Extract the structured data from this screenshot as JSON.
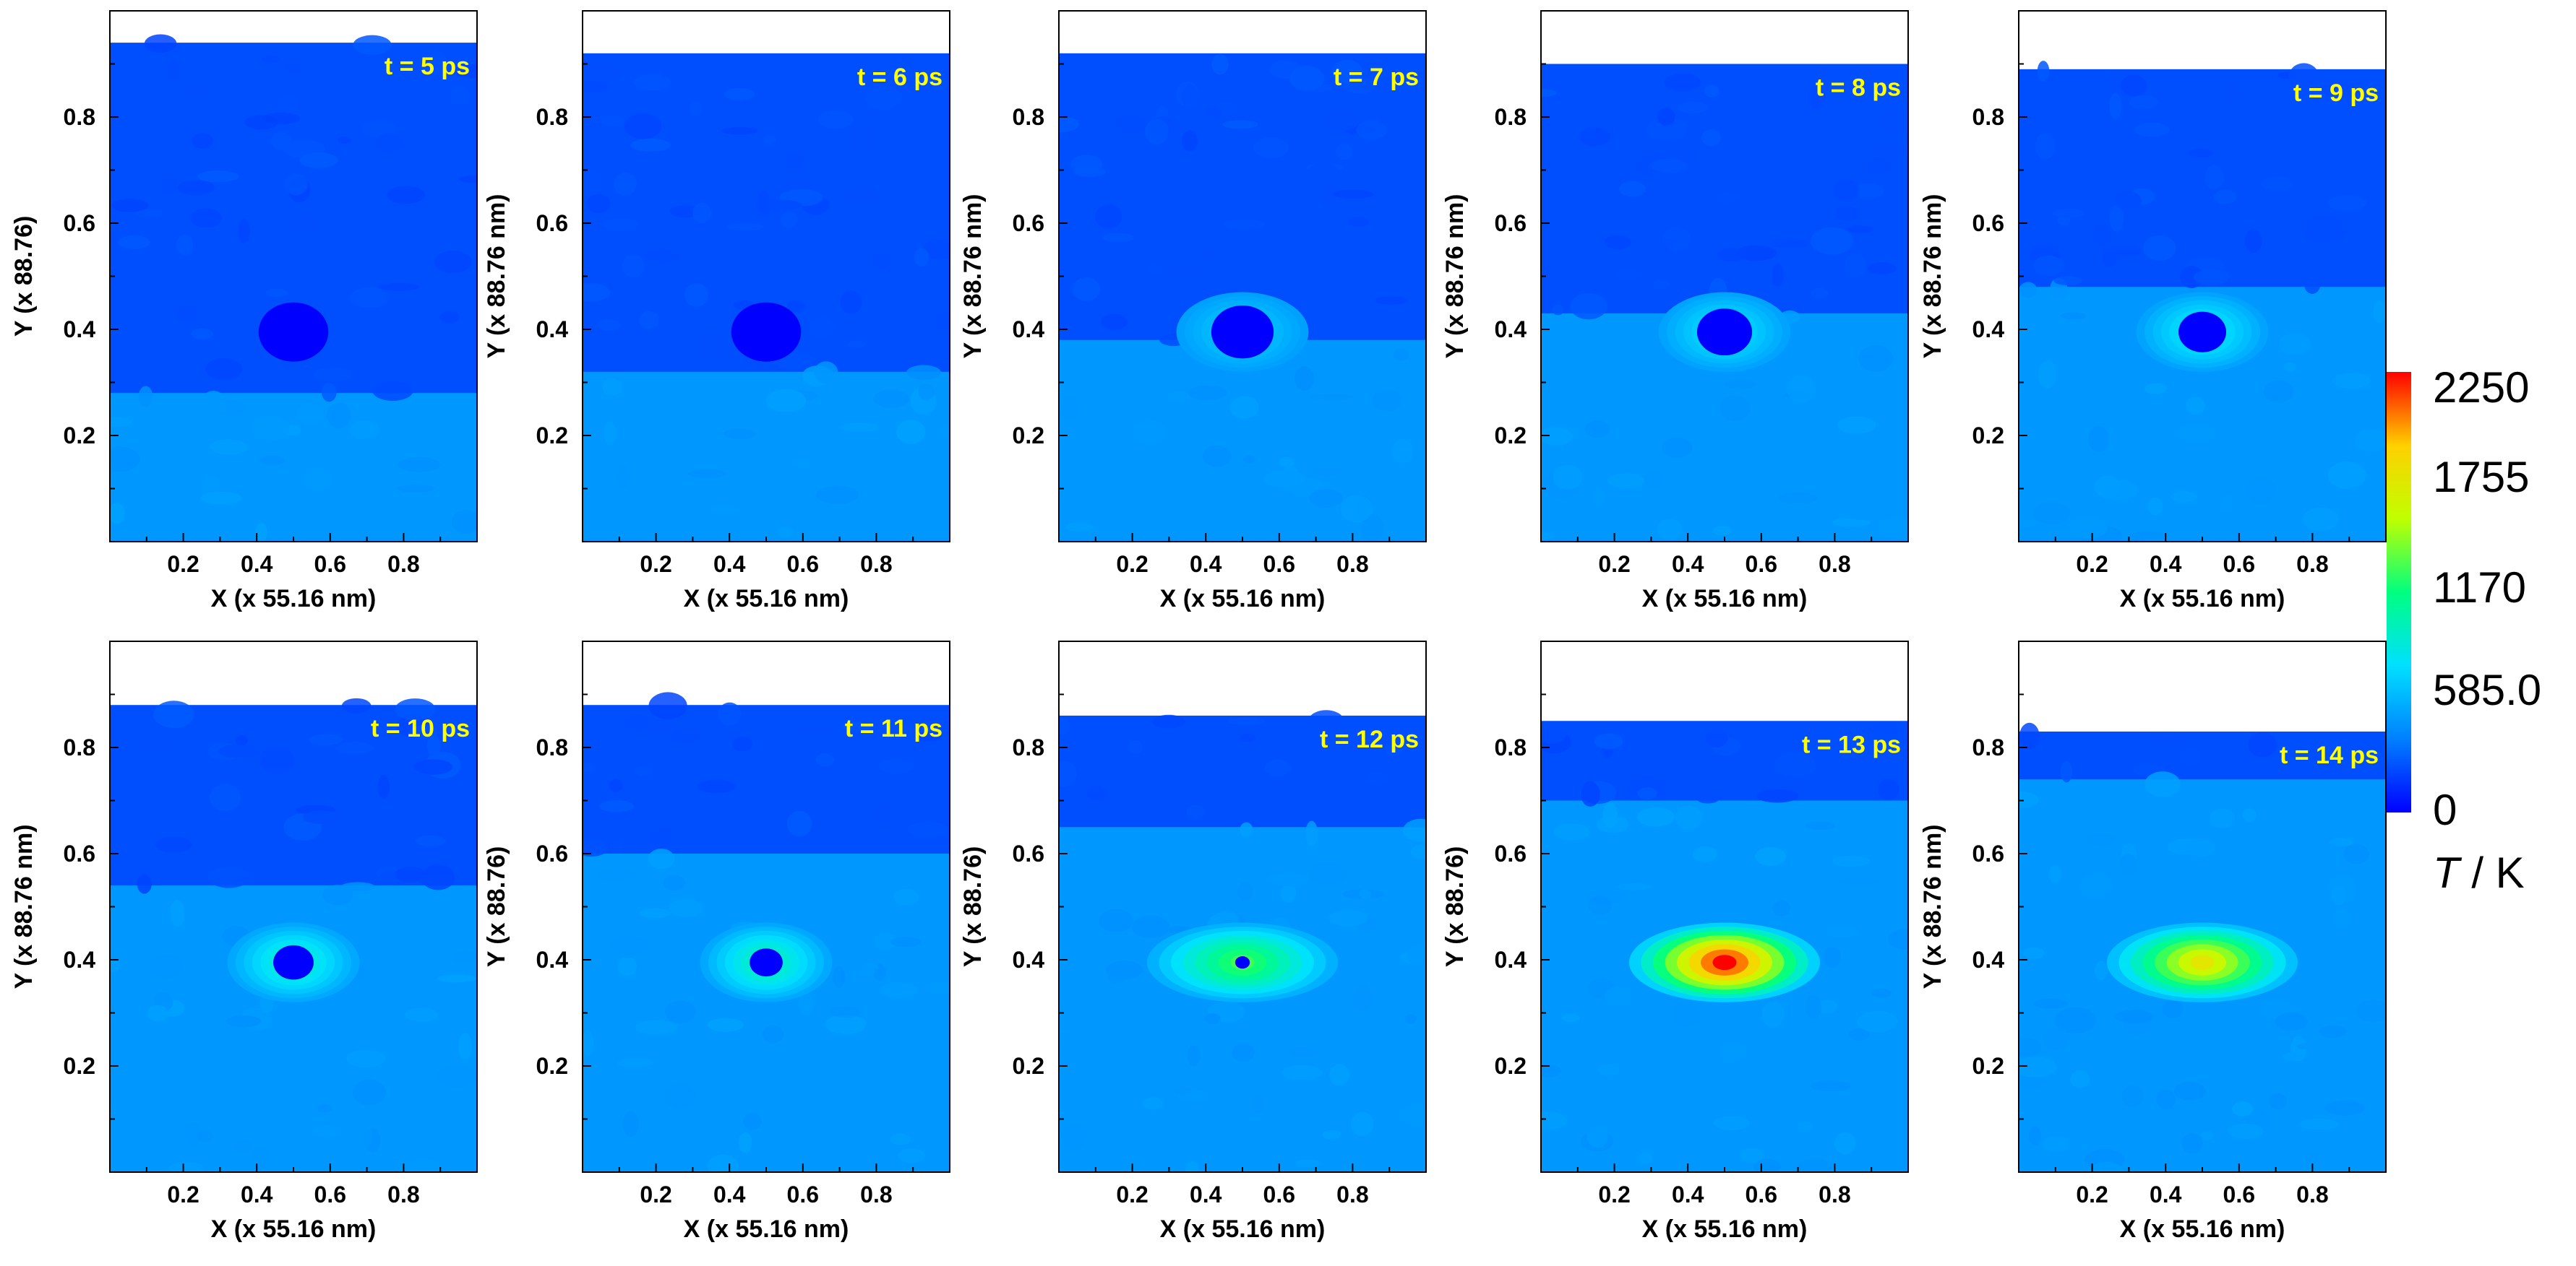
{
  "chart_data": {
    "type": "heatmap",
    "description_free": true,
    "grid": false,
    "panel_layout": "2 rows x 5 columns",
    "xlabel": "X (x 55.16 nm)",
    "xticks": [
      "0.2",
      "0.4",
      "0.6",
      "0.8"
    ],
    "yticks": [
      "0.2",
      "0.4",
      "0.6",
      "0.8"
    ],
    "xlim": [
      0,
      1
    ],
    "ylim": [
      0,
      1
    ],
    "colorbar": {
      "title_italic": "T",
      "title_rest": " / K",
      "ticks": [
        "2250",
        "1755",
        "1170",
        "585.0",
        "0"
      ],
      "tick_values": [
        2250,
        1755,
        1170,
        585,
        0
      ],
      "range": [
        0,
        2250
      ],
      "colors": [
        "#0000ff",
        "#0080ff",
        "#00e0ff",
        "#00ff80",
        "#c0ff00",
        "#ffd000",
        "#ff0000"
      ]
    },
    "panels": [
      {
        "label": "t = 5 ps",
        "ylabel": "Y (x 88.76)",
        "surface_y": 0.94,
        "front_y": 0.28,
        "hole_r": 0.095,
        "hot_peak": 0
      },
      {
        "label": "t = 6 ps",
        "ylabel": "Y (x 88.76 nm)",
        "surface_y": 0.92,
        "front_y": 0.32,
        "hole_r": 0.095,
        "hot_peak": 0
      },
      {
        "label": "t = 7 ps",
        "ylabel": "Y (x 88.76 nm)",
        "surface_y": 0.92,
        "front_y": 0.38,
        "hole_r": 0.085,
        "hot_peak": 700
      },
      {
        "label": "t = 8 ps",
        "ylabel": "Y (x 88.76 nm)",
        "surface_y": 0.9,
        "front_y": 0.43,
        "hole_r": 0.075,
        "hot_peak": 800
      },
      {
        "label": "t = 9 ps",
        "ylabel": "Y (x 88.76 nm)",
        "surface_y": 0.89,
        "front_y": 0.48,
        "hole_r": 0.065,
        "hot_peak": 850
      },
      {
        "label": "t = 10 ps",
        "ylabel": "Y (x 88.76 nm)",
        "surface_y": 0.88,
        "front_y": 0.54,
        "hole_r": 0.055,
        "hot_peak": 950
      },
      {
        "label": "t = 11 ps",
        "ylabel": "Y (x 88.76)",
        "surface_y": 0.88,
        "front_y": 0.6,
        "hole_r": 0.045,
        "hot_peak": 1000
      },
      {
        "label": "t = 12 ps",
        "ylabel": "Y (x 88.76)",
        "surface_y": 0.86,
        "front_y": 0.65,
        "hole_r": 0.02,
        "hot_peak": 1250
      },
      {
        "label": "t = 13 ps",
        "ylabel": "Y (x 88.76)",
        "surface_y": 0.85,
        "front_y": 0.7,
        "hole_r": 0,
        "hot_peak": 2250
      },
      {
        "label": "t = 14 ps",
        "ylabel": "Y (x 88.76 nm)",
        "surface_y": 0.83,
        "front_y": 0.74,
        "hole_r": 0,
        "hot_peak": 1700
      }
    ]
  }
}
